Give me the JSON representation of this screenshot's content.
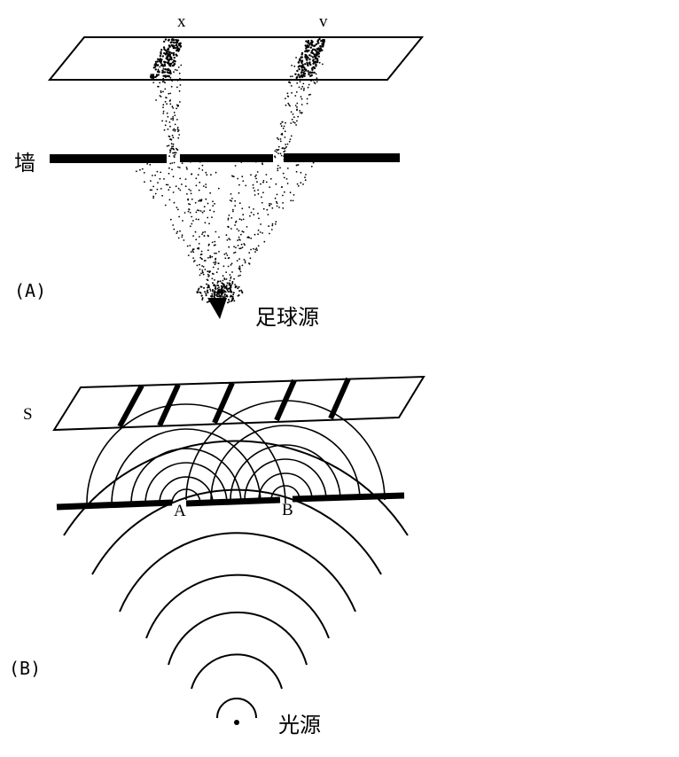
{
  "panel_a": {
    "tag": "(A)",
    "slit_x_label": "x",
    "slit_y_label": "v",
    "wall_label": "墙",
    "source_label": "足球源"
  },
  "panel_b": {
    "tag": "(B)",
    "screen_label": "S",
    "slit_a_label": "A",
    "slit_b_label": "B",
    "source_label": "光源"
  }
}
